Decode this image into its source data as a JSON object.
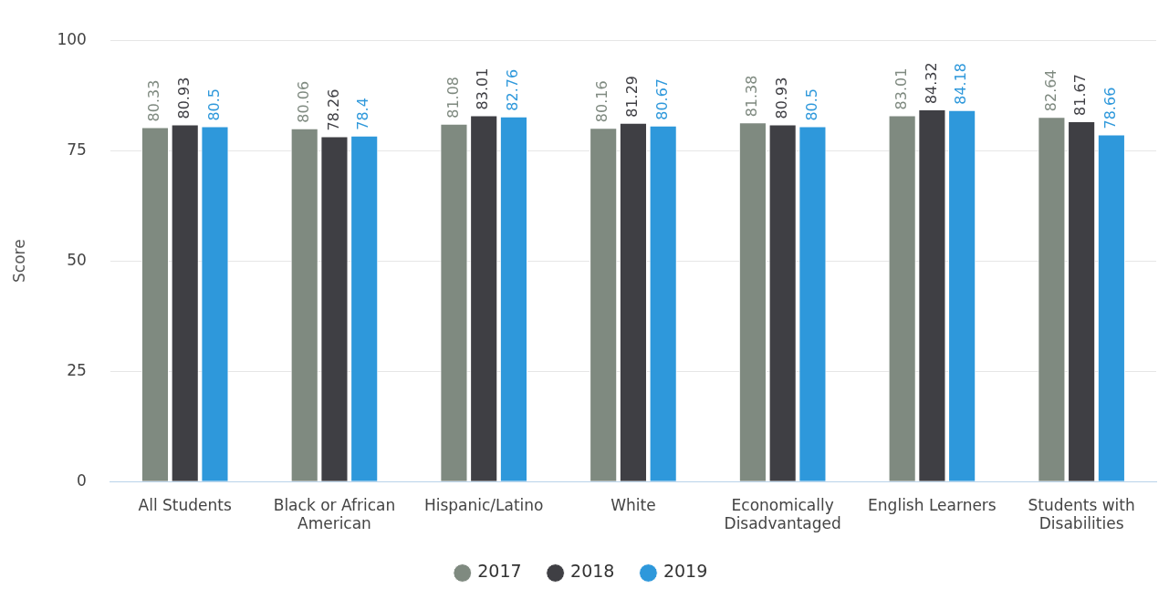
{
  "chart_data": {
    "type": "bar",
    "ylabel": "Score",
    "categories": [
      "All Students",
      "Black or African American",
      "Hispanic/Latino",
      "White",
      "Economically Disadvantaged",
      "English Learners",
      "Students with Disabilities"
    ],
    "series": [
      {
        "name": "2017",
        "color": "#7f8a80",
        "values": [
          80.33,
          80.06,
          81.08,
          80.16,
          81.38,
          83.01,
          82.64
        ]
      },
      {
        "name": "2018",
        "color": "#3f3f44",
        "values": [
          80.93,
          78.26,
          83.01,
          81.29,
          80.93,
          84.32,
          81.67
        ]
      },
      {
        "name": "2019",
        "color": "#2e98db",
        "values": [
          80.5,
          78.4,
          82.76,
          80.67,
          80.5,
          84.18,
          78.66
        ]
      }
    ],
    "ylim": [
      0,
      100
    ],
    "yticks": [
      0,
      25,
      50,
      75,
      100
    ],
    "grid": "y",
    "legend": "bottom",
    "data_labels": true
  }
}
